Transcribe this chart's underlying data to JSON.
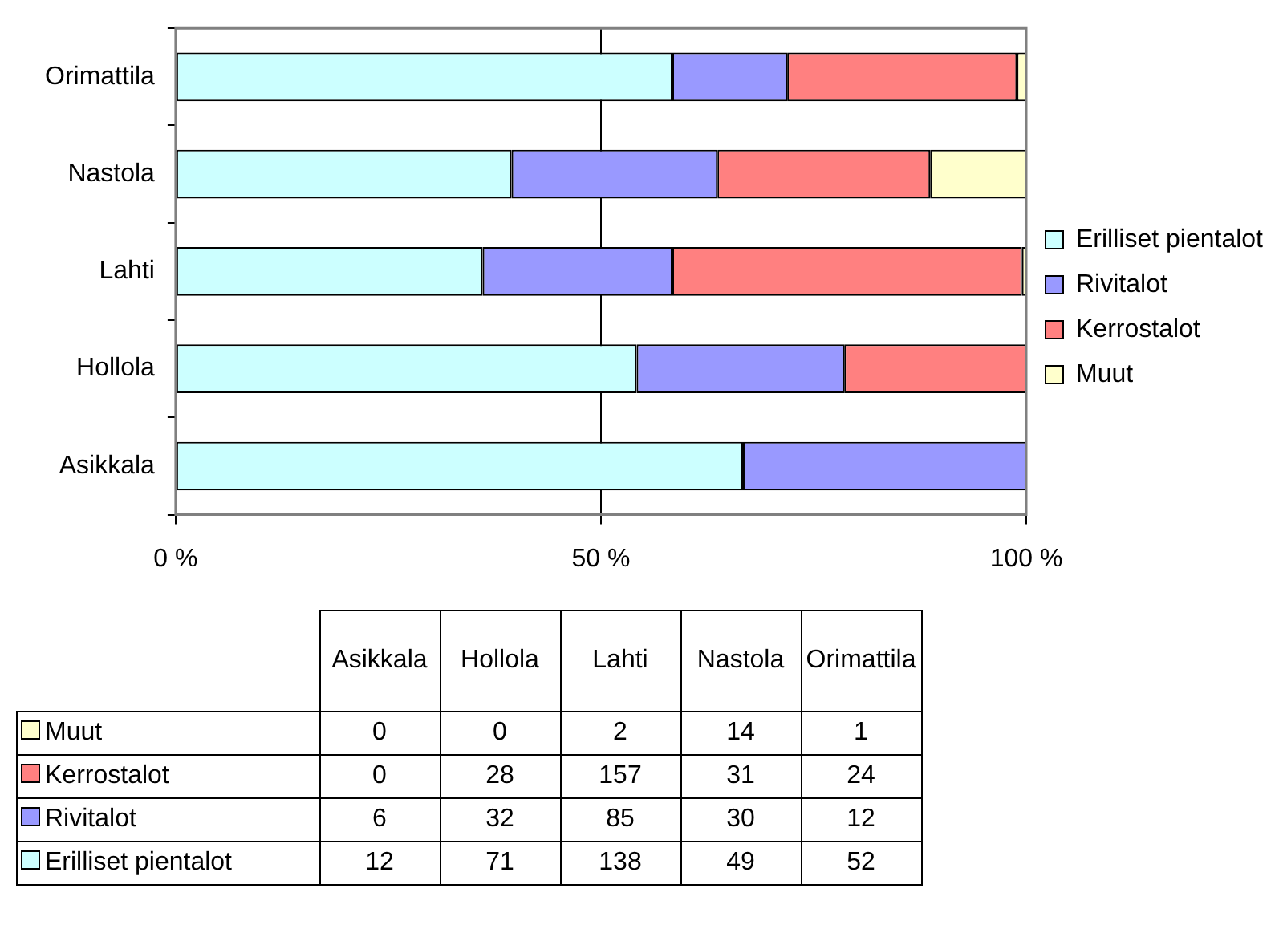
{
  "chart_data": [
    {
      "type": "bar",
      "orientation": "horizontal",
      "stacked": true,
      "categories": [
        "Orimattila",
        "Nastola",
        "Lahti",
        "Hollola",
        "Asikkala"
      ],
      "series": [
        {
          "name": "Erilliset pientalot",
          "color": "#ccffff",
          "values": [
            58.4,
            39.5,
            36.1,
            54.2,
            66.7
          ]
        },
        {
          "name": "Rivitalot",
          "color": "#9999ff",
          "values": [
            13.5,
            24.2,
            22.3,
            24.4,
            33.3
          ]
        },
        {
          "name": "Kerrostalot",
          "color": "#ff8080",
          "values": [
            27.0,
            25.0,
            41.1,
            21.4,
            0
          ]
        },
        {
          "name": "Muut",
          "color": "#ffffcc",
          "values": [
            1.1,
            11.3,
            0.5,
            0,
            0
          ]
        }
      ],
      "xlim": [
        0,
        100
      ],
      "xticks": [
        {
          "value": 0,
          "label": "0 %"
        },
        {
          "value": 50,
          "label": "50 %"
        },
        {
          "value": 100,
          "label": "100 %"
        }
      ],
      "grid": "x",
      "legend": "right"
    },
    {
      "type": "other",
      "data_labels": true,
      "categories": [
        "Asikkala",
        "Hollola",
        "Lahti",
        "Nastola",
        "Orimattila"
      ],
      "series": [
        {
          "name": "Muut",
          "color": "#ffffcc",
          "values": [
            0,
            0,
            2,
            14,
            1
          ]
        },
        {
          "name": "Kerrostalot",
          "color": "#ff8080",
          "values": [
            0,
            28,
            157,
            31,
            24
          ]
        },
        {
          "name": "Rivitalot",
          "color": "#9999ff",
          "values": [
            6,
            32,
            85,
            30,
            12
          ]
        },
        {
          "name": "Erilliset pientalot",
          "color": "#ccffff",
          "values": [
            12,
            71,
            138,
            49,
            52
          ]
        }
      ]
    }
  ]
}
